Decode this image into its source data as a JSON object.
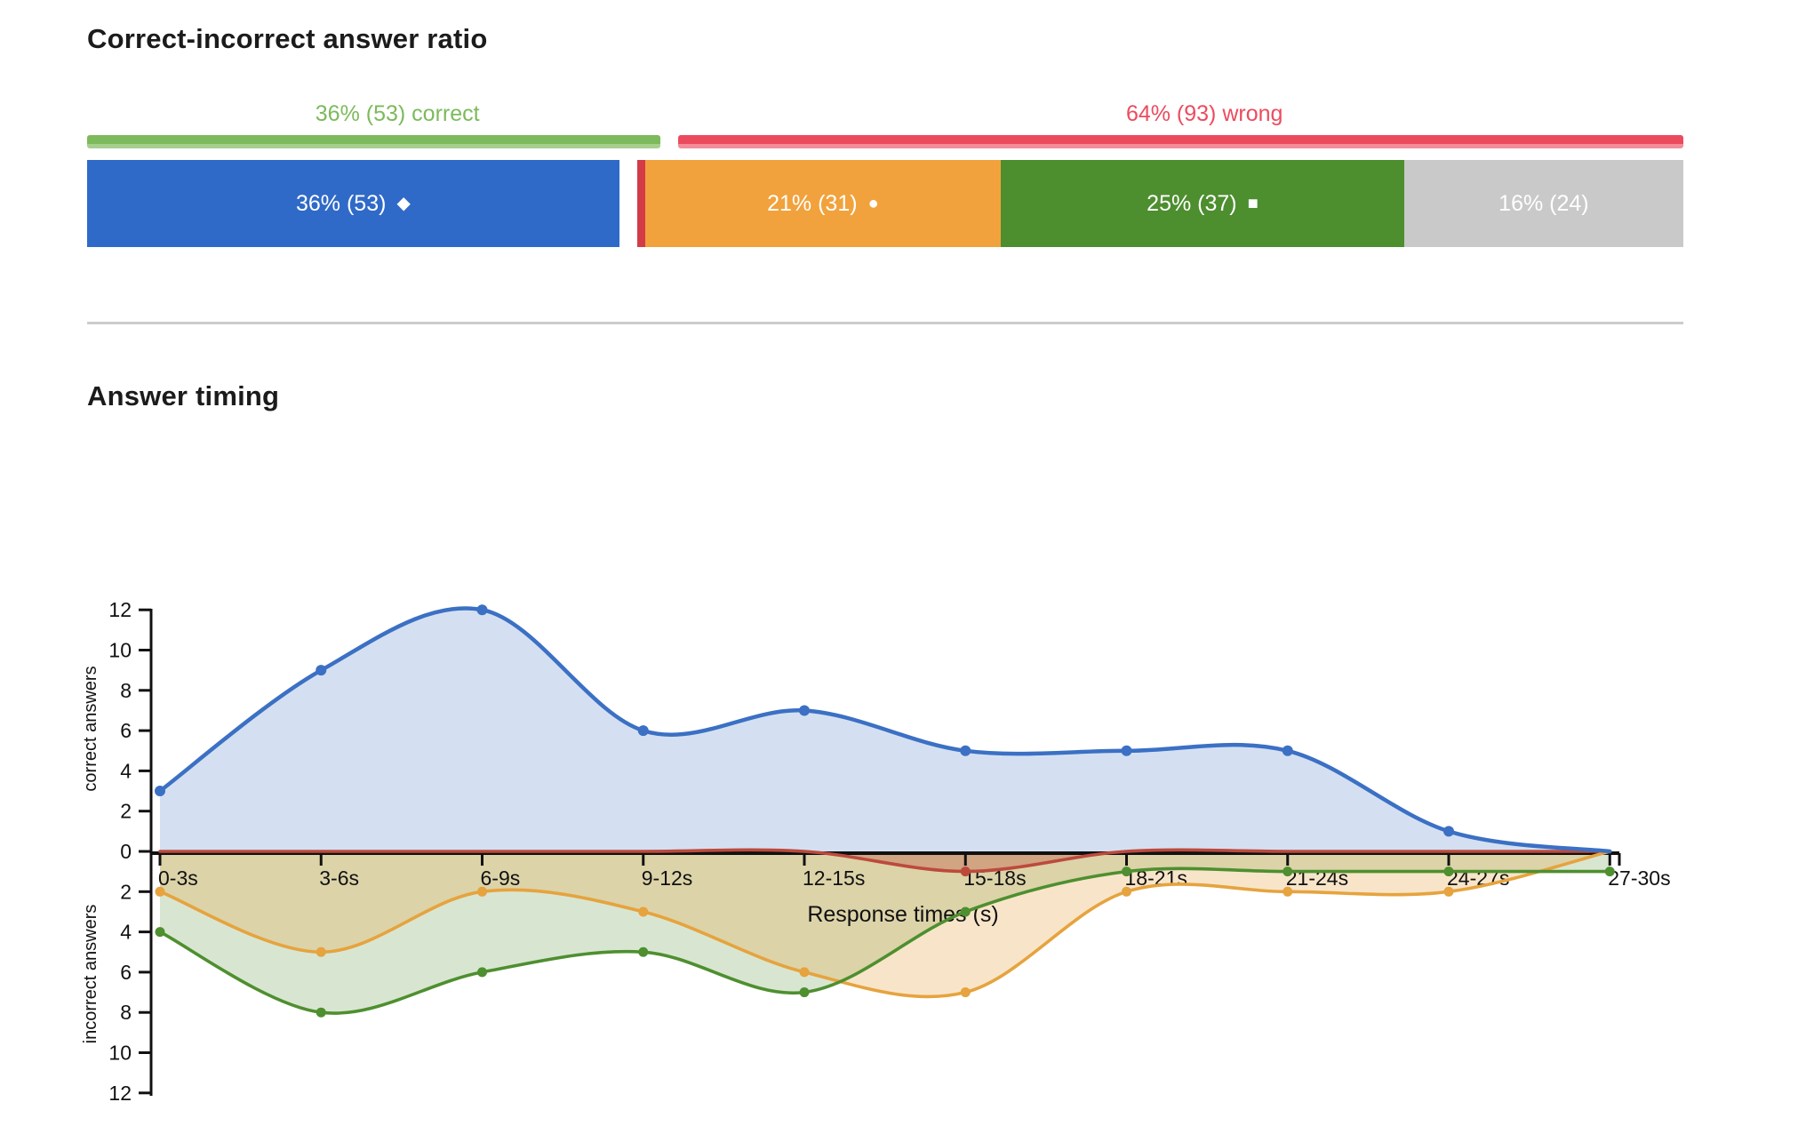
{
  "ratio": {
    "title": "Correct-incorrect answer ratio",
    "correct_caption": "36% (53) correct",
    "wrong_caption": "64% (93) wrong",
    "correct_color": "#7cba5b",
    "correct_color_light": "#a6cf8e",
    "wrong_color": "#ec4b5e",
    "wrong_color_light": "#f28d99",
    "segments": [
      {
        "id": "correct",
        "label": "36% (53)",
        "marker": "◆",
        "marker_name": "diamond",
        "count": 53,
        "color": "#2f6ac8"
      },
      {
        "id": "wrong-triangle",
        "label": "",
        "marker": "",
        "marker_name": "triangle",
        "count": 1,
        "color": "#d33b47"
      },
      {
        "id": "wrong-circle",
        "label": "21% (31)",
        "marker": "●",
        "marker_name": "circle",
        "count": 31,
        "color": "#f1a23c"
      },
      {
        "id": "wrong-square",
        "label": "25% (37)",
        "marker": "■",
        "marker_name": "square",
        "count": 37,
        "color": "#4d8e2f"
      },
      {
        "id": "unanswered",
        "label": "16% (24)",
        "marker": "",
        "marker_name": "none",
        "count": 24,
        "color": "#c9c9c9"
      }
    ]
  },
  "timing": {
    "title": "Answer timing"
  },
  "chart_data": {
    "type": "area",
    "categories": [
      "0-3s",
      "3-6s",
      "6-9s",
      "9-12s",
      "12-15s",
      "15-18s",
      "18-21s",
      "21-24s",
      "24-27s",
      "27-30s"
    ],
    "series": [
      {
        "name": "correct",
        "orientation": "up",
        "color": "#3b70c4",
        "fill": "rgba(59,112,196,0.22)",
        "values": [
          3,
          9,
          12,
          6,
          7,
          5,
          5,
          5,
          1,
          0
        ]
      },
      {
        "name": "wrong-triangle",
        "orientation": "down",
        "color": "#bc4a3c",
        "fill": "rgba(188,74,60,0.34)",
        "values": [
          0,
          0,
          0,
          0,
          0,
          1,
          0,
          0,
          0,
          0
        ]
      },
      {
        "name": "wrong-circle",
        "orientation": "down",
        "color": "#e6a33e",
        "fill": "rgba(230,163,62,0.28)",
        "values": [
          2,
          5,
          2,
          3,
          6,
          7,
          2,
          2,
          2,
          0
        ]
      },
      {
        "name": "wrong-square",
        "orientation": "down",
        "color": "#4e8f2f",
        "fill": "rgba(78,143,47,0.22)",
        "values": [
          4,
          8,
          6,
          5,
          7,
          3,
          1,
          1,
          1,
          1
        ]
      }
    ],
    "title": "Answer timing",
    "xlabel": "Response times (s)",
    "ylabel_top": "correct answers",
    "ylabel_bottom": "incorrect answers",
    "yticks_top": [
      12,
      10,
      8,
      6,
      4,
      2,
      0
    ],
    "yticks_bottom": [
      2,
      4,
      6,
      8,
      10,
      12
    ],
    "ylim": [
      -12,
      12
    ],
    "grid": false,
    "axis_color": "#111111"
  }
}
